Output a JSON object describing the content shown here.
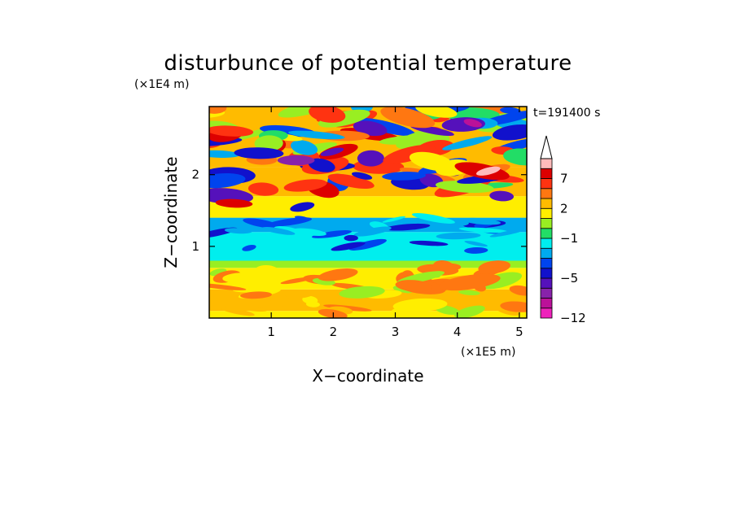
{
  "chart_data": {
    "type": "heatmap",
    "title": "disturbunce of potential temperature",
    "time_label": "t=191400 s",
    "xlabel": "X−coordinate",
    "ylabel": "Z−coordinate",
    "x_unit": "(×1E5 m)",
    "y_unit": "(×1E4 m)",
    "xlim": [
      0,
      5.12
    ],
    "ylim": [
      0,
      2.95
    ],
    "x_ticks": [
      1,
      2,
      3,
      4,
      5
    ],
    "x_tick_labels": [
      "1",
      "2",
      "3",
      "4",
      "5"
    ],
    "y_ticks": [
      1,
      2
    ],
    "y_tick_labels": [
      "1",
      "2"
    ],
    "grid": false,
    "colorbar": {
      "levels": [
        -12,
        -10,
        -8,
        -6,
        -5,
        -4,
        -3,
        -2,
        -1,
        0,
        1,
        2,
        3,
        5,
        7,
        9,
        11
      ],
      "tick_values": [
        -12,
        -5,
        -1,
        2,
        7
      ],
      "tick_labels": [
        "−12",
        "−5",
        "−1",
        "2",
        "7"
      ],
      "colors": [
        "#ee22bb",
        "#bb1199",
        "#8822aa",
        "#5511bb",
        "#1111cc",
        "#0044ee",
        "#00aaee",
        "#00eeee",
        "#22dd66",
        "#99ee22",
        "#ffee00",
        "#ffbb00",
        "#ff7711",
        "#ff3311",
        "#dd0000",
        "#ffbbbb"
      ],
      "extend": "max",
      "extend_color": "#ffffff"
    },
    "field_description": {
      "bands": [
        {
          "z": [
            0.0,
            0.1
          ],
          "value": 1.0
        },
        {
          "z": [
            0.1,
            0.4
          ],
          "value": 2.5
        },
        {
          "z": [
            0.4,
            0.7
          ],
          "value": 1.5
        },
        {
          "z": [
            0.7,
            0.8
          ],
          "value": 0.5
        },
        {
          "z": [
            0.8,
            1.2
          ],
          "value": -1.5
        },
        {
          "z": [
            1.2,
            1.4
          ],
          "value": -3.0
        },
        {
          "z": [
            1.4,
            1.7
          ],
          "value": 1.5
        },
        {
          "z": [
            1.7,
            2.1
          ],
          "value": 2.5
        },
        {
          "z": [
            2.1,
            2.95
          ],
          "value": 2.0
        }
      ]
    }
  }
}
